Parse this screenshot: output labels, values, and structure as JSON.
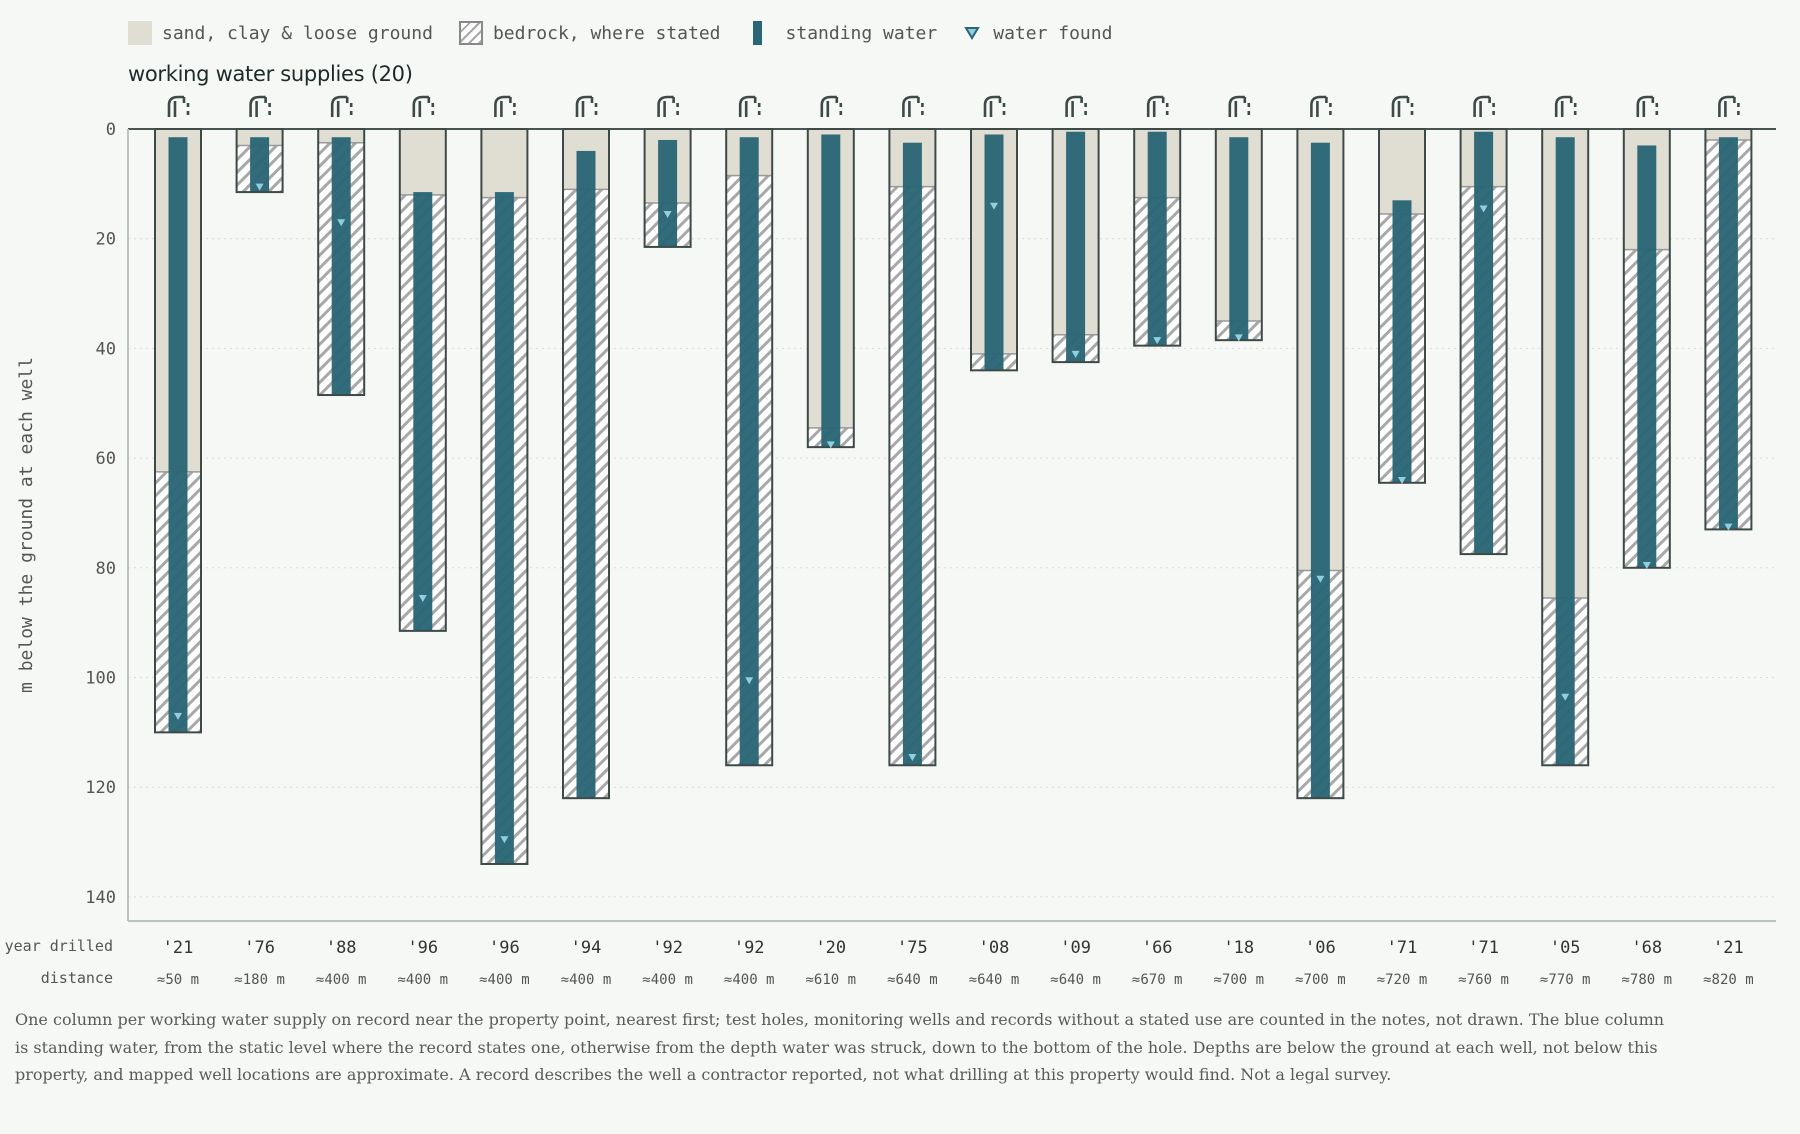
{
  "legend": {
    "sand": "sand, clay & loose ground",
    "rock": "bedrock, where stated",
    "water": "standing water",
    "found": "water found"
  },
  "chart_title": "working water supplies (20)",
  "notes": "One column per working water supply on record near the property point, nearest first; test holes, monitoring wells and records without a stated use are counted in the notes, not drawn. The blue column is standing water, from the static level where the record states one, otherwise from the depth water was struck, down to the bottom of the hole. Depths are below the ground at each well, not below this property, and mapped well locations are approximate. A record describes the well a contractor reported, not what drilling at this property would find. Not a legal survey.",
  "colors": {
    "background": "#f5f8f4",
    "sand": "#e0ddd2",
    "water": "#2a6675",
    "rock_hatch": "#a8a8a8",
    "outline": "#3d4a48",
    "water_found_marker": "#8fd0e0"
  },
  "icons": {
    "well": "well-pump-icon",
    "found": "water-found-triangle-icon"
  },
  "chart_data": {
    "type": "bar",
    "ylabel": "m below the ground at each well",
    "row_labels": {
      "year": "year drilled",
      "distance": "distance"
    },
    "ylim": [
      0,
      144
    ],
    "y_inverted": true,
    "yticks": [
      0,
      20,
      40,
      60,
      80,
      100,
      120,
      140
    ],
    "grid": "horizontal dotted",
    "legend_position": "top-left",
    "wells": [
      {
        "year": "'21",
        "distance": "≈50 m",
        "total_depth": 110,
        "sand_to": 62.5,
        "water_top": 1.5,
        "found_at": 107
      },
      {
        "year": "'76",
        "distance": "≈180 m",
        "total_depth": 11.5,
        "sand_to": 3,
        "water_top": 1.5,
        "found_at": 10.5
      },
      {
        "year": "'88",
        "distance": "≈400 m",
        "total_depth": 48.5,
        "sand_to": 2.5,
        "water_top": 1.5,
        "found_at": 17
      },
      {
        "year": "'96",
        "distance": "≈400 m",
        "total_depth": 91.5,
        "sand_to": 12,
        "water_top": 11.5,
        "found_at": 85.5
      },
      {
        "year": "'96",
        "distance": "≈400 m",
        "total_depth": 134,
        "sand_to": 12.5,
        "water_top": 11.5,
        "found_at": 129.5
      },
      {
        "year": "'94",
        "distance": "≈400 m",
        "total_depth": 122,
        "sand_to": 11,
        "water_top": 4,
        "found_at": null
      },
      {
        "year": "'92",
        "distance": "≈400 m",
        "total_depth": 21.5,
        "sand_to": 13.5,
        "water_top": 2,
        "found_at": 15.5
      },
      {
        "year": "'92",
        "distance": "≈400 m",
        "total_depth": 116,
        "sand_to": 8.5,
        "water_top": 1.5,
        "found_at": 100.5
      },
      {
        "year": "'20",
        "distance": "≈610 m",
        "total_depth": 58,
        "sand_to": 54.5,
        "water_top": 1,
        "found_at": 57.5
      },
      {
        "year": "'75",
        "distance": "≈640 m",
        "total_depth": 116,
        "sand_to": 10.5,
        "water_top": 2.5,
        "found_at": 114.5
      },
      {
        "year": "'08",
        "distance": "≈640 m",
        "total_depth": 44,
        "sand_to": 41,
        "water_top": 1,
        "found_at": 14
      },
      {
        "year": "'09",
        "distance": "≈640 m",
        "total_depth": 42.5,
        "sand_to": 37.5,
        "water_top": 0.5,
        "found_at": 41
      },
      {
        "year": "'66",
        "distance": "≈670 m",
        "total_depth": 39.5,
        "sand_to": 12.5,
        "water_top": 0.5,
        "found_at": 38.5
      },
      {
        "year": "'18",
        "distance": "≈700 m",
        "total_depth": 38.5,
        "sand_to": 35,
        "water_top": 1.5,
        "found_at": 38
      },
      {
        "year": "'06",
        "distance": "≈700 m",
        "total_depth": 122,
        "sand_to": 80.5,
        "water_top": 2.5,
        "found_at": 82
      },
      {
        "year": "'71",
        "distance": "≈720 m",
        "total_depth": 64.5,
        "sand_to": 15.5,
        "water_top": 13,
        "found_at": 64
      },
      {
        "year": "'71",
        "distance": "≈760 m",
        "total_depth": 77.5,
        "sand_to": 10.5,
        "water_top": 0.5,
        "found_at": 14.5
      },
      {
        "year": "'05",
        "distance": "≈770 m",
        "total_depth": 116,
        "sand_to": 85.5,
        "water_top": 1.5,
        "found_at": 103.5
      },
      {
        "year": "'68",
        "distance": "≈780 m",
        "total_depth": 80,
        "sand_to": 22,
        "water_top": 3,
        "found_at": 79.5
      },
      {
        "year": "'21",
        "distance": "≈820 m",
        "total_depth": 73,
        "sand_to": 2,
        "water_top": 1.5,
        "found_at": 72.5
      }
    ]
  }
}
